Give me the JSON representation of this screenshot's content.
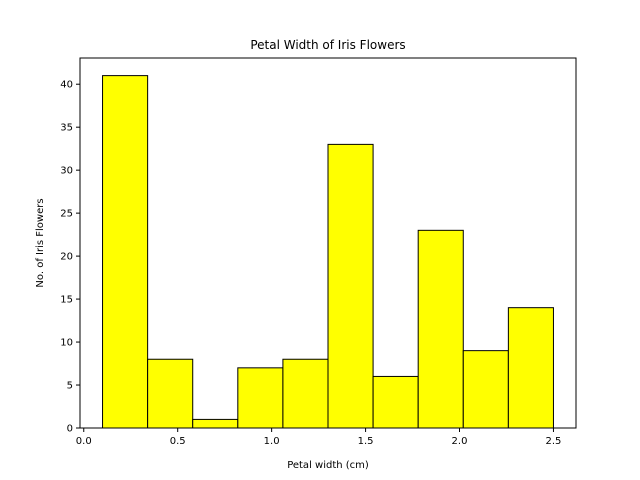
{
  "chart_data": {
    "type": "bar",
    "title": "Petal Width of Iris Flowers",
    "xlabel": "Petal width (cm)",
    "ylabel": "No. of Iris Flowers",
    "bin_edges": [
      0.1,
      0.34,
      0.58,
      0.82,
      1.06,
      1.3,
      1.54,
      1.78,
      2.02,
      2.26,
      2.5
    ],
    "values": [
      41,
      8,
      1,
      7,
      8,
      33,
      6,
      23,
      9,
      14
    ],
    "xlim": [
      -0.02,
      2.62
    ],
    "ylim": [
      0,
      43.05
    ],
    "xticks": [
      0.0,
      0.5,
      1.0,
      1.5,
      2.0,
      2.5
    ],
    "xtick_labels": [
      "0.0",
      "0.5",
      "1.0",
      "1.5",
      "2.0",
      "2.5"
    ],
    "yticks": [
      0,
      5,
      10,
      15,
      20,
      25,
      30,
      35,
      40
    ],
    "ytick_labels": [
      "0",
      "5",
      "10",
      "15",
      "20",
      "25",
      "30",
      "35",
      "40"
    ],
    "bar_color": "#ffff00",
    "edge_color": "#000000",
    "grid": false,
    "legend": "none"
  }
}
